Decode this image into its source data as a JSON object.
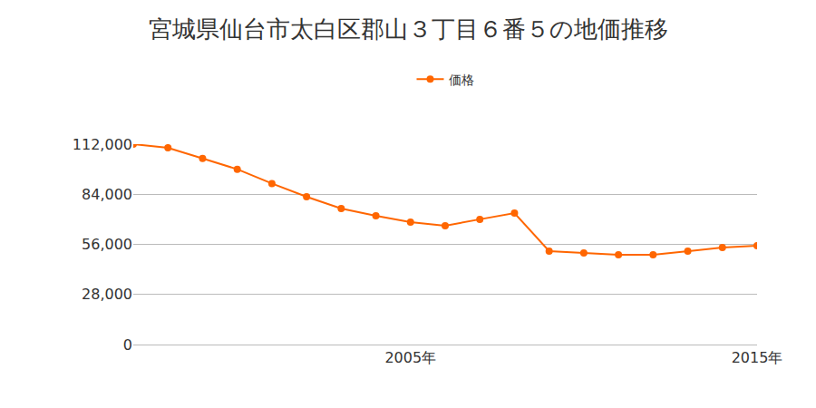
{
  "chart_data": {
    "type": "line",
    "title": "宮城県仙台市太白区郡山３丁目６番５の地価推移",
    "x": [
      1997,
      1998,
      1999,
      2000,
      2001,
      2002,
      2003,
      2004,
      2005,
      2006,
      2007,
      2008,
      2009,
      2010,
      2011,
      2012,
      2013,
      2014,
      2015
    ],
    "series": [
      {
        "name": "価格",
        "color": "#ff6600",
        "marker": "circle",
        "values": [
          112000,
          110000,
          104000,
          98000,
          90000,
          82600,
          76000,
          72000,
          68400,
          66400,
          70000,
          73500,
          52200,
          51200,
          50200,
          50200,
          52200,
          54200,
          55200
        ]
      }
    ],
    "xlim": [
      1997,
      2015
    ],
    "xticks": [
      {
        "value": 2005,
        "label": "2005年"
      },
      {
        "value": 2015,
        "label": "2015年"
      }
    ],
    "ylim": [
      0,
      112000
    ],
    "yticks": [
      0,
      {
        "value": 28000,
        "label": "28,000"
      },
      {
        "value": 56000,
        "label": "56,000"
      },
      {
        "value": 84000,
        "label": "84,000"
      },
      {
        "value": 112000,
        "label": "112,000"
      }
    ],
    "grid": true,
    "legend": "top"
  }
}
